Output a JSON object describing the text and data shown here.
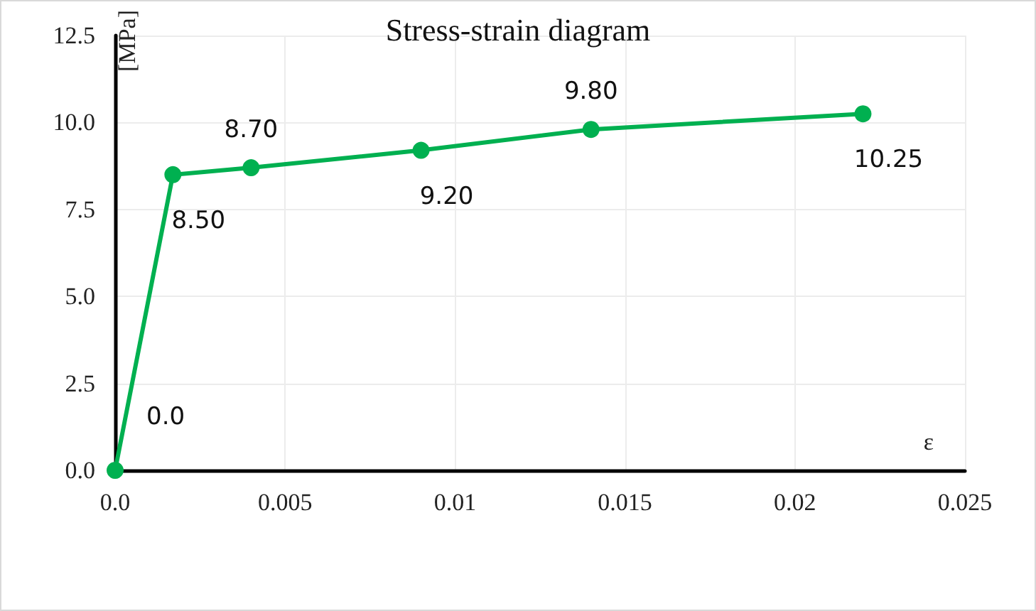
{
  "chart_data": {
    "type": "line",
    "title": "Stress-strain diagram",
    "xlabel": "ε",
    "ylabel": "[MPa]",
    "x": [
      0,
      0.0017,
      0.004,
      0.009,
      0.014,
      0.022
    ],
    "series": [
      {
        "color": "#00b050",
        "values": [
          0,
          8.5,
          8.7,
          9.2,
          9.8,
          10.25
        ],
        "value_labels": [
          "0.0",
          "8.50",
          "8.70",
          "9.20",
          "9.80",
          "10.25"
        ]
      }
    ],
    "xlim": [
      0,
      0.025
    ],
    "xticks": [
      {
        "value": 0,
        "label": "0.0"
      },
      0.005,
      0.01,
      0.015,
      0.02,
      0.025
    ],
    "ylim": [
      0,
      12.5
    ],
    "yticks": [
      {
        "value": 0,
        "label": "0.0"
      },
      2.5,
      {
        "value": 5,
        "label": "5.0"
      },
      7.5,
      {
        "value": 10,
        "label": "10.0"
      },
      12.5
    ],
    "grid": true,
    "marker": "circle",
    "line_style": "solid"
  }
}
